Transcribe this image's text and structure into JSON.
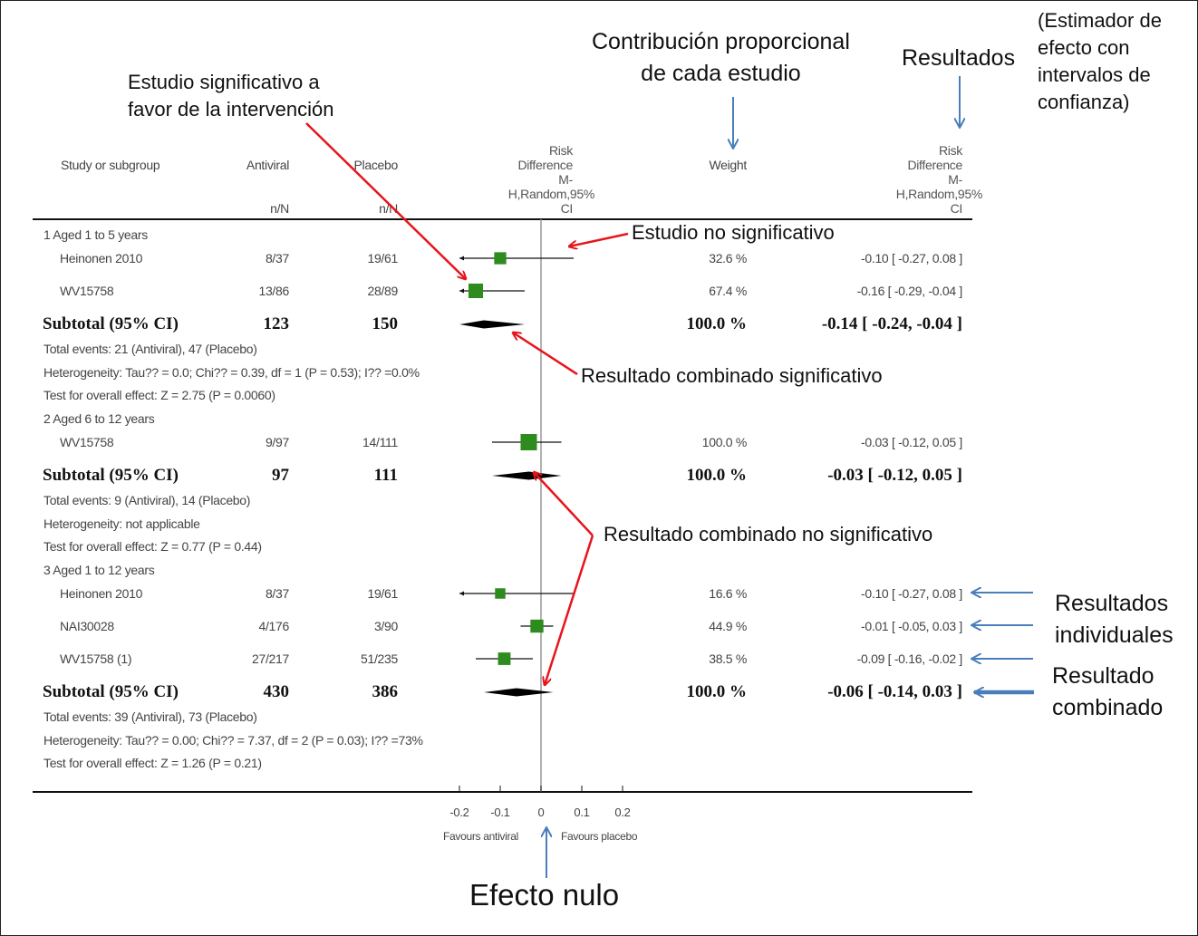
{
  "headers": {
    "study": "Study or subgroup",
    "antiviral": "Antiviral",
    "antiviral_sub": "n/N",
    "placebo": "Placebo",
    "placebo_sub": "n/N",
    "rd_plot": [
      "Risk",
      "Difference",
      "M-",
      "H,Random,95%",
      "CI"
    ],
    "weight": "Weight",
    "rd_text": [
      "Risk",
      "Difference",
      "M-",
      "H,Random,95%",
      "CI"
    ]
  },
  "chart_data": {
    "type": "forest",
    "xlim": [
      -0.2,
      0.2
    ],
    "ticks": [
      -0.2,
      -0.1,
      0,
      0.1,
      0.2
    ],
    "tick_labels": [
      "-0.2",
      "-0.1",
      "0",
      "0.1",
      "0.2"
    ],
    "favours_left": "Favours antiviral",
    "favours_right": "Favours placebo",
    "marker_color": "#2e8b1e",
    "groups": [
      {
        "label": "1 Aged 1 to 5 years",
        "studies": [
          {
            "name": "Heinonen 2010",
            "antiviral": "8/37",
            "placebo": "19/61",
            "weight": "32.6 %",
            "rd_text": "-0.10 [ -0.27, 0.08 ]",
            "rd": -0.1,
            "ci": [
              -0.27,
              0.08
            ],
            "w": 32.6
          },
          {
            "name": "WV15758",
            "antiviral": "13/86",
            "placebo": "28/89",
            "weight": "67.4 %",
            "rd_text": "-0.16 [ -0.29, -0.04 ]",
            "rd": -0.16,
            "ci": [
              -0.29,
              -0.04
            ],
            "w": 67.4
          }
        ],
        "subtotal": {
          "label": "Subtotal (95% CI)",
          "antiviral": "123",
          "placebo": "150",
          "weight": "100.0 %",
          "rd_text": "-0.14 [ -0.24, -0.04 ]",
          "rd": -0.14,
          "ci": [
            -0.24,
            -0.04
          ]
        },
        "notes": [
          "Total events: 21 (Antiviral), 47 (Placebo)",
          "Heterogeneity: Tau?? = 0.0; Chi?? = 0.39, df = 1 (P = 0.53); I?? =0.0%",
          "Test for overall effect: Z = 2.75 (P = 0.0060)"
        ]
      },
      {
        "label": "2 Aged 6 to 12 years",
        "studies": [
          {
            "name": "WV15758",
            "antiviral": "9/97",
            "placebo": "14/111",
            "weight": "100.0 %",
            "rd_text": "-0.03 [ -0.12, 0.05 ]",
            "rd": -0.03,
            "ci": [
              -0.12,
              0.05
            ],
            "w": 100
          }
        ],
        "subtotal": {
          "label": "Subtotal (95% CI)",
          "antiviral": "97",
          "placebo": "111",
          "weight": "100.0 %",
          "rd_text": "-0.03 [ -0.12, 0.05 ]",
          "rd": -0.03,
          "ci": [
            -0.12,
            0.05
          ]
        },
        "notes": [
          "Total events: 9 (Antiviral), 14 (Placebo)",
          "Heterogeneity: not applicable",
          "Test for overall effect: Z = 0.77 (P = 0.44)"
        ]
      },
      {
        "label": "3 Aged 1 to 12 years",
        "studies": [
          {
            "name": "Heinonen 2010",
            "antiviral": "8/37",
            "placebo": "19/61",
            "weight": "16.6 %",
            "rd_text": "-0.10 [ -0.27, 0.08 ]",
            "rd": -0.1,
            "ci": [
              -0.27,
              0.08
            ],
            "w": 16.6
          },
          {
            "name": "NAI30028",
            "antiviral": "4/176",
            "placebo": "3/90",
            "weight": "44.9 %",
            "rd_text": "-0.01 [ -0.05, 0.03 ]",
            "rd": -0.01,
            "ci": [
              -0.05,
              0.03
            ],
            "w": 44.9
          },
          {
            "name": "WV15758 (1)",
            "antiviral": "27/217",
            "placebo": "51/235",
            "weight": "38.5 %",
            "rd_text": "-0.09 [ -0.16, -0.02 ]",
            "rd": -0.09,
            "ci": [
              -0.16,
              -0.02
            ],
            "w": 38.5
          }
        ],
        "subtotal": {
          "label": "Subtotal (95% CI)",
          "antiviral": "430",
          "placebo": "386",
          "weight": "100.0 %",
          "rd_text": "-0.06 [ -0.14, 0.03 ]",
          "rd": -0.06,
          "ci": [
            -0.14,
            0.03
          ]
        },
        "notes": [
          "Total events: 39 (Antiviral), 73 (Placebo)",
          "Heterogeneity: Tau?? = 0.00; Chi?? = 7.37, df = 2 (P = 0.03); I?? =73%",
          "Test for overall effect: Z = 1.26 (P = 0.21)"
        ]
      }
    ]
  },
  "annotations": {
    "significant_study": [
      "Estudio significativo a",
      "favor de la intervención"
    ],
    "contribution": [
      "Contribución proporcional",
      "de cada estudio"
    ],
    "results": "Resultados",
    "estimator": [
      "(Estimador de",
      "efecto con",
      "intervalos de",
      "confianza)"
    ],
    "non_significant_study": "Estudio no significativo",
    "combined_significant": "Resultado combinado significativo",
    "combined_non_significant": "Resultado combinado no significativo",
    "individual_results": [
      "Resultados",
      "individuales"
    ],
    "combined_result": [
      "Resultado",
      "combinado"
    ],
    "null_effect": "Efecto nulo",
    "red": "#e8141b",
    "blue": "#4a7ebb"
  }
}
